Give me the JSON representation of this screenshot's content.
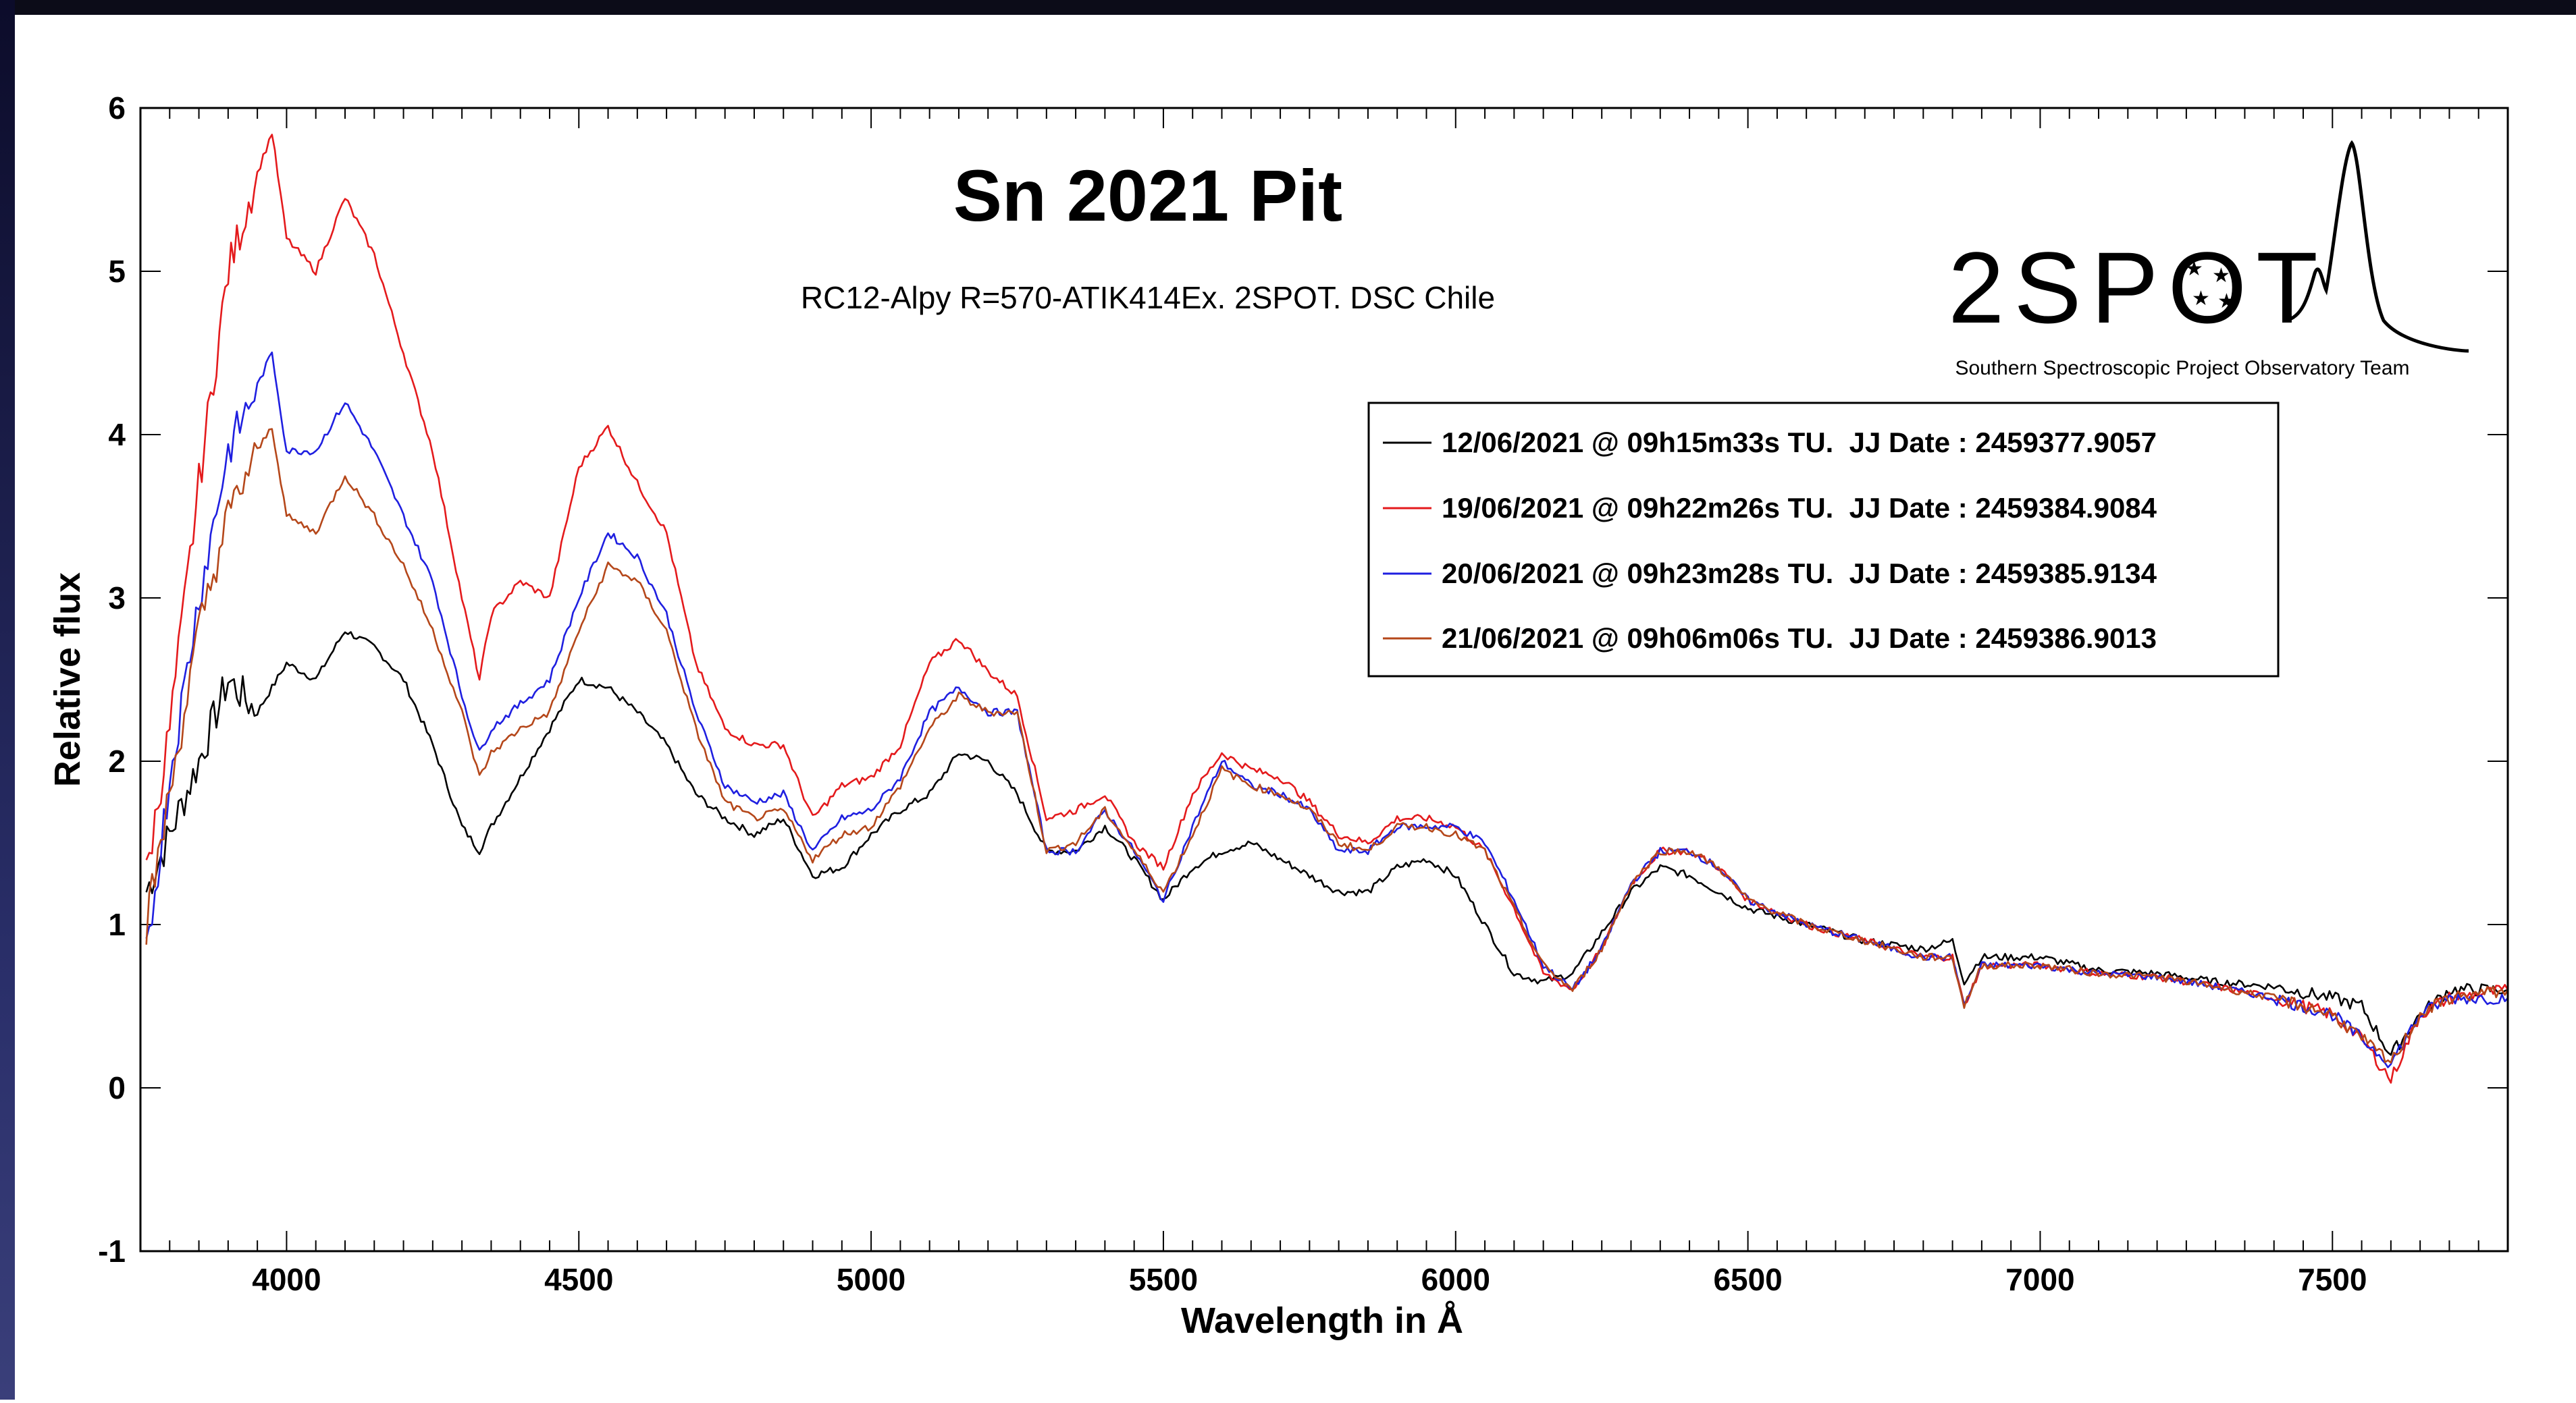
{
  "chart_data": {
    "type": "line",
    "title": "Sn 2021 Pit",
    "subtitle": "RC12-Alpy R=570-ATIK414Ex. 2SPOT. DSC Chile",
    "xlabel": "Wavelength in Å",
    "ylabel": "Relative flux",
    "xlim": [
      3750,
      7800
    ],
    "ylim": [
      -1,
      6
    ],
    "xticks": [
      "4000",
      "4500",
      "5000",
      "5500",
      "6000",
      "6500",
      "7000",
      "7500"
    ],
    "xtick_values": [
      4000,
      4500,
      5000,
      5500,
      6000,
      6500,
      7000,
      7500
    ],
    "yticks": [
      "-1",
      "0",
      "1",
      "2",
      "3",
      "4",
      "5",
      "6"
    ],
    "ytick_values": [
      -1,
      0,
      1,
      2,
      3,
      4,
      5,
      6
    ],
    "grid": false,
    "legend_position": "upper-right",
    "series": [
      {
        "name": "12/06/2021 @ 09h15m33s TU.  JJ Date : 2459377.9057",
        "color": "#000000",
        "x": [
          3760,
          3800,
          3850,
          3900,
          3950,
          4000,
          4050,
          4100,
          4150,
          4200,
          4250,
          4300,
          4330,
          4350,
          4400,
          4450,
          4500,
          4550,
          4600,
          4650,
          4700,
          4750,
          4800,
          4850,
          4900,
          4950,
          5000,
          5050,
          5100,
          5150,
          5200,
          5250,
          5300,
          5350,
          5400,
          5450,
          5500,
          5550,
          5600,
          5650,
          5700,
          5750,
          5800,
          5850,
          5900,
          5950,
          6000,
          6050,
          6100,
          6150,
          6200,
          6250,
          6300,
          6350,
          6400,
          6450,
          6500,
          6600,
          6700,
          6800,
          6850,
          6870,
          6900,
          7000,
          7100,
          7200,
          7300,
          7400,
          7500,
          7550,
          7600,
          7650,
          7700,
          7800
        ],
        "y": [
          1.2,
          1.55,
          2.0,
          2.5,
          2.3,
          2.6,
          2.5,
          2.8,
          2.7,
          2.5,
          2.1,
          1.6,
          1.45,
          1.6,
          1.9,
          2.2,
          2.5,
          2.45,
          2.3,
          2.1,
          1.8,
          1.65,
          1.55,
          1.65,
          1.3,
          1.35,
          1.55,
          1.7,
          1.8,
          2.05,
          2.0,
          1.8,
          1.45,
          1.45,
          1.6,
          1.4,
          1.15,
          1.35,
          1.45,
          1.5,
          1.4,
          1.3,
          1.2,
          1.2,
          1.35,
          1.4,
          1.3,
          1.0,
          0.7,
          0.65,
          0.7,
          0.95,
          1.2,
          1.35,
          1.3,
          1.2,
          1.1,
          1.0,
          0.9,
          0.85,
          0.9,
          0.65,
          0.8,
          0.8,
          0.72,
          0.7,
          0.65,
          0.62,
          0.55,
          0.5,
          0.2,
          0.45,
          0.6,
          0.6
        ]
      },
      {
        "name": "19/06/2021 @ 09h22m26s TU.  JJ Date : 2459384.9084",
        "color": "#e41a1c",
        "x": [
          3760,
          3800,
          3850,
          3900,
          3950,
          3975,
          4000,
          4050,
          4100,
          4150,
          4200,
          4250,
          4300,
          4330,
          4350,
          4400,
          4450,
          4500,
          4550,
          4600,
          4650,
          4700,
          4750,
          4800,
          4850,
          4900,
          4950,
          5000,
          5050,
          5100,
          5150,
          5200,
          5250,
          5300,
          5350,
          5400,
          5450,
          5500,
          5550,
          5600,
          5650,
          5700,
          5750,
          5800,
          5850,
          5900,
          5950,
          6000,
          6050,
          6100,
          6150,
          6200,
          6250,
          6300,
          6350,
          6400,
          6450,
          6500,
          6600,
          6700,
          6800,
          6850,
          6870,
          6900,
          7000,
          7100,
          7200,
          7300,
          7400,
          7500,
          7550,
          7600,
          7650,
          7700,
          7800
        ],
        "y": [
          1.3,
          2.2,
          3.7,
          5.0,
          5.6,
          5.85,
          5.2,
          5.0,
          5.45,
          5.1,
          4.5,
          3.9,
          3.0,
          2.5,
          2.9,
          3.1,
          3.0,
          3.8,
          4.05,
          3.7,
          3.4,
          2.6,
          2.2,
          2.1,
          2.1,
          1.65,
          1.85,
          1.9,
          2.1,
          2.6,
          2.75,
          2.55,
          2.4,
          1.65,
          1.7,
          1.8,
          1.5,
          1.35,
          1.8,
          2.05,
          1.95,
          1.9,
          1.75,
          1.55,
          1.5,
          1.65,
          1.65,
          1.6,
          1.45,
          1.1,
          0.7,
          0.6,
          0.85,
          1.25,
          1.45,
          1.45,
          1.35,
          1.15,
          1.0,
          0.9,
          0.8,
          0.8,
          0.5,
          0.75,
          0.75,
          0.7,
          0.68,
          0.62,
          0.55,
          0.45,
          0.3,
          0.05,
          0.45,
          0.55,
          0.6
        ]
      },
      {
        "name": "20/06/2021 @ 09h23m28s TU.  JJ Date : 2459385.9134",
        "color": "#1f1fe0",
        "x": [
          3760,
          3800,
          3850,
          3900,
          3950,
          3975,
          4000,
          4050,
          4100,
          4150,
          4200,
          4250,
          4300,
          4330,
          4350,
          4400,
          4450,
          4500,
          4550,
          4600,
          4650,
          4700,
          4750,
          4800,
          4850,
          4900,
          4950,
          5000,
          5050,
          5100,
          5150,
          5200,
          5250,
          5300,
          5350,
          5400,
          5450,
          5500,
          5550,
          5600,
          5650,
          5700,
          5750,
          5800,
          5850,
          5900,
          5950,
          6000,
          6050,
          6100,
          6150,
          6200,
          6250,
          6300,
          6350,
          6400,
          6450,
          6500,
          6600,
          6700,
          6800,
          6850,
          6870,
          6900,
          7000,
          7100,
          7200,
          7300,
          7400,
          7500,
          7550,
          7600,
          7650,
          7700,
          7800
        ],
        "y": [
          0.8,
          1.9,
          3.0,
          3.9,
          4.3,
          4.5,
          3.9,
          3.9,
          4.2,
          3.9,
          3.5,
          3.1,
          2.4,
          2.05,
          2.2,
          2.35,
          2.5,
          3.0,
          3.4,
          3.25,
          2.9,
          2.3,
          1.85,
          1.75,
          1.8,
          1.45,
          1.65,
          1.7,
          1.9,
          2.3,
          2.45,
          2.3,
          2.3,
          1.45,
          1.45,
          1.7,
          1.45,
          1.15,
          1.6,
          2.0,
          1.85,
          1.8,
          1.7,
          1.45,
          1.45,
          1.6,
          1.6,
          1.6,
          1.5,
          1.15,
          0.75,
          0.6,
          0.85,
          1.25,
          1.45,
          1.45,
          1.35,
          1.15,
          1.0,
          0.9,
          0.8,
          0.8,
          0.5,
          0.75,
          0.75,
          0.7,
          0.68,
          0.62,
          0.55,
          0.45,
          0.3,
          0.15,
          0.45,
          0.55,
          0.55
        ]
      },
      {
        "name": "21/06/2021 @ 09h06m06s TU.  JJ Date : 2459386.9013",
        "color": "#b5471a",
        "x": [
          3760,
          3800,
          3850,
          3900,
          3950,
          3975,
          4000,
          4050,
          4100,
          4150,
          4200,
          4250,
          4300,
          4330,
          4350,
          4400,
          4450,
          4500,
          4550,
          4600,
          4650,
          4700,
          4750,
          4800,
          4850,
          4900,
          4950,
          5000,
          5050,
          5100,
          5150,
          5200,
          5250,
          5300,
          5350,
          5400,
          5450,
          5500,
          5550,
          5600,
          5650,
          5700,
          5750,
          5800,
          5850,
          5900,
          5950,
          6000,
          6050,
          6100,
          6150,
          6200,
          6250,
          6300,
          6350,
          6400,
          6450,
          6500,
          6600,
          6700,
          6800,
          6850,
          6870,
          6900,
          7000,
          7100,
          7200,
          7300,
          7400,
          7500,
          7550,
          7600,
          7650,
          7700,
          7800
        ],
        "y": [
          1.0,
          1.8,
          2.8,
          3.5,
          3.9,
          4.05,
          3.5,
          3.4,
          3.75,
          3.5,
          3.2,
          2.8,
          2.3,
          1.9,
          2.05,
          2.2,
          2.3,
          2.8,
          3.2,
          3.1,
          2.8,
          2.2,
          1.75,
          1.65,
          1.7,
          1.4,
          1.55,
          1.6,
          1.85,
          2.2,
          2.4,
          2.3,
          2.3,
          1.45,
          1.5,
          1.7,
          1.45,
          1.2,
          1.55,
          1.95,
          1.85,
          1.8,
          1.7,
          1.5,
          1.45,
          1.6,
          1.6,
          1.55,
          1.45,
          1.1,
          0.75,
          0.6,
          0.85,
          1.25,
          1.45,
          1.45,
          1.35,
          1.15,
          1.0,
          0.9,
          0.8,
          0.8,
          0.5,
          0.75,
          0.75,
          0.7,
          0.68,
          0.62,
          0.55,
          0.45,
          0.3,
          0.15,
          0.45,
          0.55,
          0.6
        ]
      }
    ]
  },
  "logo": {
    "text": "2SPOT",
    "tagline": "Southern Spectroscopic Project Observatory Team"
  }
}
